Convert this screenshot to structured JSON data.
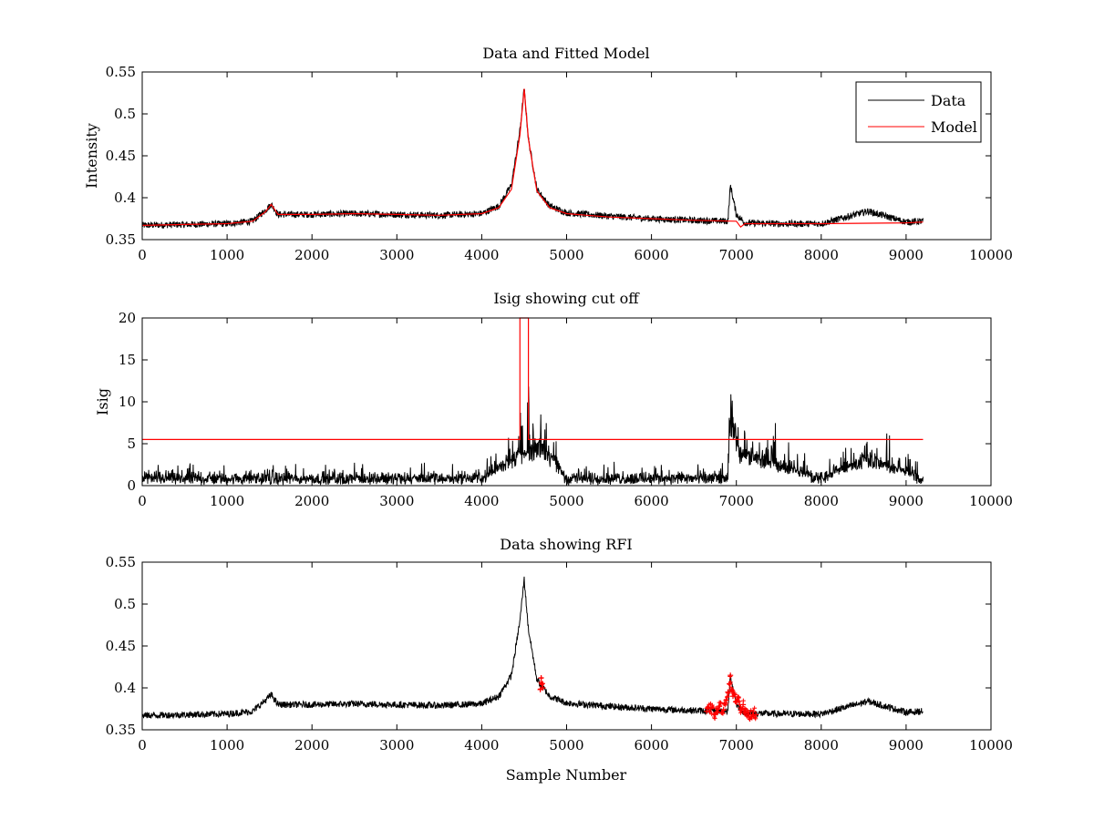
{
  "colors": {
    "data": "#000000",
    "model": "#ff0000",
    "rfi": "#ff0000"
  },
  "xlabel_shared": "Sample Number",
  "chart_data": [
    {
      "type": "line",
      "title": "Data and Fitted Model",
      "xlabel": "",
      "ylabel": "Intensity",
      "xlim": [
        0,
        10000
      ],
      "ylim": [
        0.35,
        0.55
      ],
      "xticks": [
        0,
        1000,
        2000,
        3000,
        4000,
        5000,
        6000,
        7000,
        8000,
        9000,
        10000
      ],
      "xtick_labels": [
        "0",
        "1000",
        "2000",
        "3000",
        "4000",
        "5000",
        "6000",
        "7000",
        "8000",
        "9000",
        "10000"
      ],
      "yticks": [
        0.35,
        0.4,
        0.45,
        0.5,
        0.55
      ],
      "ytick_labels": [
        "0.35",
        "0.4",
        "0.45",
        "0.5",
        "0.55"
      ],
      "grid": false,
      "legend": {
        "placement": "top-right",
        "entries": [
          "Data",
          "Model"
        ]
      },
      "series": [
        {
          "name": "Data",
          "style": "noisy-line",
          "x": [
            0,
            500,
            1000,
            1300,
            1450,
            1520,
            1600,
            2000,
            2500,
            3000,
            3500,
            4000,
            4200,
            4350,
            4450,
            4500,
            4550,
            4650,
            4800,
            5000,
            5500,
            6000,
            6500,
            6900,
            6930,
            7000,
            7100,
            7500,
            8000,
            8550,
            9000,
            9200
          ],
          "y": [
            0.367,
            0.368,
            0.369,
            0.372,
            0.385,
            0.392,
            0.38,
            0.38,
            0.381,
            0.38,
            0.379,
            0.381,
            0.39,
            0.415,
            0.48,
            0.53,
            0.47,
            0.41,
            0.39,
            0.382,
            0.378,
            0.375,
            0.373,
            0.372,
            0.415,
            0.38,
            0.37,
            0.369,
            0.369,
            0.384,
            0.371,
            0.372
          ],
          "noise": 0.004
        },
        {
          "name": "Model",
          "style": "line",
          "x": [
            0,
            500,
            1000,
            1300,
            1450,
            1520,
            1600,
            2000,
            2500,
            3000,
            3500,
            4000,
            4200,
            4350,
            4450,
            4500,
            4550,
            4650,
            4800,
            5000,
            5500,
            6000,
            6500,
            7000,
            7050,
            7100,
            7500,
            8000,
            9000,
            9200
          ],
          "y": [
            0.367,
            0.368,
            0.369,
            0.372,
            0.383,
            0.392,
            0.38,
            0.38,
            0.381,
            0.38,
            0.379,
            0.381,
            0.388,
            0.41,
            0.475,
            0.53,
            0.47,
            0.408,
            0.388,
            0.381,
            0.377,
            0.375,
            0.373,
            0.372,
            0.365,
            0.369,
            0.369,
            0.369,
            0.37,
            0.371
          ]
        }
      ]
    },
    {
      "type": "line",
      "title": "Isig showing cut off",
      "xlabel": "",
      "ylabel": "Isig",
      "xlim": [
        0,
        10000
      ],
      "ylim": [
        0,
        20
      ],
      "xticks": [
        0,
        1000,
        2000,
        3000,
        4000,
        5000,
        6000,
        7000,
        8000,
        9000,
        10000
      ],
      "xtick_labels": [
        "0",
        "1000",
        "2000",
        "3000",
        "4000",
        "5000",
        "6000",
        "7000",
        "8000",
        "9000",
        "10000"
      ],
      "yticks": [
        0,
        5,
        10,
        15,
        20
      ],
      "ytick_labels": [
        "0",
        "5",
        "10",
        "15",
        "20"
      ],
      "grid": false,
      "series": [
        {
          "style": "noisy-spikes",
          "x": [
            0,
            1000,
            2000,
            3000,
            4000,
            4330,
            4700,
            5000,
            6000,
            6900,
            6930,
            7050,
            8000,
            8540,
            9200
          ],
          "y": [
            1.0,
            1.0,
            1.0,
            1.0,
            1.0,
            3.5,
            5.6,
            1.0,
            1.0,
            1.0,
            9.8,
            4.5,
            1.0,
            3.8,
            1.0
          ],
          "noise": 1.2
        },
        {
          "style": "cutoff-line",
          "x": [
            0,
            4450,
            4450,
            4550,
            4550,
            9200
          ],
          "y": [
            5.5,
            5.5,
            20,
            20,
            5.5,
            5.5
          ]
        }
      ]
    },
    {
      "type": "line",
      "title": "Data showing RFI",
      "xlabel": "Sample Number",
      "ylabel": "",
      "xlim": [
        0,
        10000
      ],
      "ylim": [
        0.35,
        0.55
      ],
      "xticks": [
        0,
        1000,
        2000,
        3000,
        4000,
        5000,
        6000,
        7000,
        8000,
        9000,
        10000
      ],
      "xtick_labels": [
        "0",
        "1000",
        "2000",
        "3000",
        "4000",
        "5000",
        "6000",
        "7000",
        "8000",
        "9000",
        "10000"
      ],
      "yticks": [
        0.35,
        0.4,
        0.45,
        0.5,
        0.55
      ],
      "ytick_labels": [
        "0.35",
        "0.4",
        "0.45",
        "0.5",
        "0.55"
      ],
      "grid": false,
      "series": [
        {
          "style": "noisy-line",
          "x": [
            0,
            500,
            1000,
            1300,
            1450,
            1520,
            1600,
            2000,
            2500,
            3000,
            3500,
            4000,
            4200,
            4350,
            4450,
            4500,
            4550,
            4650,
            4800,
            5000,
            5500,
            6000,
            6500,
            6900,
            6930,
            7000,
            7100,
            7500,
            8000,
            8550,
            9000,
            9200
          ],
          "y": [
            0.367,
            0.368,
            0.369,
            0.372,
            0.385,
            0.392,
            0.38,
            0.38,
            0.381,
            0.38,
            0.379,
            0.381,
            0.39,
            0.415,
            0.48,
            0.53,
            0.47,
            0.41,
            0.39,
            0.382,
            0.378,
            0.375,
            0.373,
            0.372,
            0.415,
            0.38,
            0.37,
            0.369,
            0.369,
            0.384,
            0.371,
            0.372
          ],
          "noise": 0.004
        },
        {
          "style": "markers",
          "marker": "+",
          "x": [
            4690,
            4700,
            4710,
            4720,
            6650,
            6700,
            6750,
            6800,
            6850,
            6880,
            6900,
            6920,
            6930,
            6940,
            6960,
            6980,
            7000,
            7020,
            7050,
            7080,
            7100,
            7150,
            7200,
            7230
          ],
          "y": [
            0.398,
            0.412,
            0.405,
            0.4,
            0.372,
            0.376,
            0.368,
            0.378,
            0.374,
            0.385,
            0.395,
            0.405,
            0.415,
            0.398,
            0.39,
            0.392,
            0.383,
            0.388,
            0.376,
            0.38,
            0.37,
            0.365,
            0.372,
            0.368
          ]
        }
      ]
    }
  ]
}
